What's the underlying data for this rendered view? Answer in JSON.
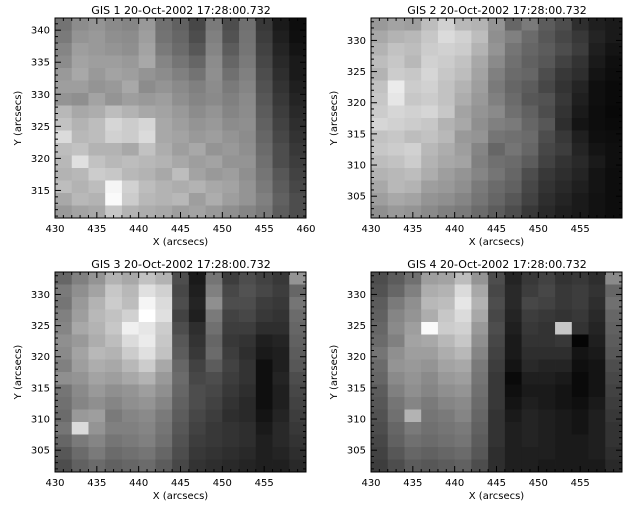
{
  "chart_data": [
    {
      "type": "heatmap",
      "title": "GIS 1 20-Oct-2002 17:28:00.732",
      "xlabel": "X (arcsecs)",
      "ylabel": "Y (arcsecs)",
      "xlim": [
        430,
        460
      ],
      "ylim": [
        310.7,
        341.9
      ],
      "xticks": [
        430,
        435,
        440,
        445,
        450,
        455,
        460
      ],
      "yticks": [
        315,
        320,
        325,
        330,
        335,
        340
      ],
      "colormap": "grayscale",
      "color_min": "#000000",
      "color_max": "#ffffff",
      "ncols": 15,
      "nrows": 16,
      "z": [
        [
          0.45,
          0.55,
          0.58,
          0.54,
          0.52,
          0.6,
          0.44,
          0.38,
          0.28,
          0.48,
          0.3,
          0.44,
          0.22,
          0.1,
          0.05
        ],
        [
          0.48,
          0.58,
          0.6,
          0.56,
          0.55,
          0.62,
          0.45,
          0.4,
          0.3,
          0.5,
          0.32,
          0.45,
          0.24,
          0.12,
          0.06
        ],
        [
          0.52,
          0.62,
          0.6,
          0.58,
          0.56,
          0.64,
          0.48,
          0.42,
          0.34,
          0.52,
          0.36,
          0.46,
          0.26,
          0.14,
          0.08
        ],
        [
          0.55,
          0.64,
          0.62,
          0.62,
          0.6,
          0.66,
          0.52,
          0.46,
          0.4,
          0.55,
          0.4,
          0.48,
          0.28,
          0.16,
          0.1
        ],
        [
          0.6,
          0.66,
          0.6,
          0.64,
          0.62,
          0.58,
          0.55,
          0.5,
          0.45,
          0.56,
          0.44,
          0.5,
          0.3,
          0.18,
          0.1
        ],
        [
          0.62,
          0.62,
          0.58,
          0.6,
          0.66,
          0.55,
          0.58,
          0.54,
          0.5,
          0.55,
          0.48,
          0.52,
          0.32,
          0.2,
          0.12
        ],
        [
          0.58,
          0.56,
          0.64,
          0.58,
          0.62,
          0.6,
          0.62,
          0.56,
          0.52,
          0.54,
          0.5,
          0.54,
          0.34,
          0.22,
          0.14
        ],
        [
          0.72,
          0.66,
          0.68,
          0.74,
          0.7,
          0.66,
          0.64,
          0.6,
          0.55,
          0.58,
          0.52,
          0.55,
          0.36,
          0.24,
          0.16
        ],
        [
          0.76,
          0.7,
          0.74,
          0.84,
          0.8,
          0.84,
          0.66,
          0.62,
          0.58,
          0.6,
          0.55,
          0.56,
          0.38,
          0.26,
          0.18
        ],
        [
          0.86,
          0.72,
          0.74,
          0.82,
          0.8,
          0.86,
          0.66,
          0.64,
          0.6,
          0.62,
          0.58,
          0.55,
          0.4,
          0.28,
          0.2
        ],
        [
          0.74,
          0.76,
          0.7,
          0.7,
          0.66,
          0.76,
          0.68,
          0.62,
          0.66,
          0.58,
          0.6,
          0.56,
          0.42,
          0.3,
          0.22
        ],
        [
          0.72,
          0.88,
          0.76,
          0.72,
          0.74,
          0.72,
          0.7,
          0.66,
          0.62,
          0.64,
          0.58,
          0.58,
          0.44,
          0.3,
          0.24
        ],
        [
          0.7,
          0.72,
          0.8,
          0.78,
          0.72,
          0.7,
          0.66,
          0.74,
          0.64,
          0.6,
          0.62,
          0.56,
          0.46,
          0.34,
          0.26
        ],
        [
          0.74,
          0.7,
          0.74,
          0.96,
          0.82,
          0.74,
          0.7,
          0.68,
          0.7,
          0.66,
          0.64,
          0.58,
          0.48,
          0.36,
          0.28
        ],
        [
          0.66,
          0.72,
          0.7,
          0.98,
          0.8,
          0.72,
          0.7,
          0.72,
          0.62,
          0.68,
          0.62,
          0.58,
          0.5,
          0.38,
          0.3
        ],
        [
          0.6,
          0.64,
          0.66,
          0.78,
          0.7,
          0.68,
          0.66,
          0.62,
          0.64,
          0.6,
          0.56,
          0.52,
          0.48,
          0.36,
          0.3
        ]
      ]
    },
    {
      "type": "heatmap",
      "title": "GIS 2 20-Oct-2002 17:28:00.732",
      "xlabel": "X (arcsecs)",
      "ylabel": "Y (arcsecs)",
      "xlim": [
        430,
        460
      ],
      "ylim": [
        301.5,
        333.6
      ],
      "xticks": [
        430,
        435,
        440,
        445,
        450,
        455
      ],
      "yticks": [
        305,
        310,
        315,
        320,
        325,
        330
      ],
      "colormap": "grayscale",
      "color_min": "#000000",
      "color_max": "#ffffff",
      "ncols": 15,
      "nrows": 16,
      "z": [
        [
          0.6,
          0.64,
          0.62,
          0.74,
          0.82,
          0.72,
          0.7,
          0.58,
          0.4,
          0.48,
          0.36,
          0.3,
          0.18,
          0.12,
          0.1
        ],
        [
          0.66,
          0.7,
          0.72,
          0.78,
          0.86,
          0.82,
          0.74,
          0.56,
          0.5,
          0.42,
          0.34,
          0.28,
          0.22,
          0.14,
          0.1
        ],
        [
          0.7,
          0.76,
          0.74,
          0.8,
          0.82,
          0.8,
          0.7,
          0.58,
          0.46,
          0.4,
          0.36,
          0.3,
          0.24,
          0.12,
          0.08
        ],
        [
          0.74,
          0.78,
          0.72,
          0.82,
          0.8,
          0.76,
          0.66,
          0.54,
          0.44,
          0.38,
          0.34,
          0.26,
          0.2,
          0.1,
          0.06
        ],
        [
          0.7,
          0.8,
          0.78,
          0.84,
          0.78,
          0.74,
          0.64,
          0.5,
          0.42,
          0.4,
          0.3,
          0.22,
          0.18,
          0.08,
          0.05
        ],
        [
          0.76,
          0.92,
          0.8,
          0.82,
          0.76,
          0.7,
          0.62,
          0.48,
          0.4,
          0.36,
          0.28,
          0.2,
          0.14,
          0.06,
          0.04
        ],
        [
          0.78,
          0.9,
          0.78,
          0.8,
          0.76,
          0.68,
          0.6,
          0.5,
          0.42,
          0.34,
          0.32,
          0.22,
          0.12,
          0.06,
          0.04
        ],
        [
          0.8,
          0.84,
          0.82,
          0.84,
          0.78,
          0.64,
          0.58,
          0.54,
          0.44,
          0.38,
          0.3,
          0.2,
          0.1,
          0.05,
          0.03
        ],
        [
          0.84,
          0.82,
          0.8,
          0.78,
          0.7,
          0.66,
          0.56,
          0.5,
          0.48,
          0.4,
          0.34,
          0.18,
          0.08,
          0.05,
          0.04
        ],
        [
          0.76,
          0.78,
          0.74,
          0.76,
          0.72,
          0.6,
          0.58,
          0.46,
          0.44,
          0.42,
          0.3,
          0.22,
          0.12,
          0.06,
          0.05
        ],
        [
          0.78,
          0.8,
          0.82,
          0.72,
          0.68,
          0.62,
          0.52,
          0.4,
          0.46,
          0.4,
          0.28,
          0.24,
          0.14,
          0.08,
          0.06
        ],
        [
          0.74,
          0.76,
          0.8,
          0.7,
          0.66,
          0.64,
          0.5,
          0.44,
          0.42,
          0.36,
          0.26,
          0.2,
          0.16,
          0.1,
          0.06
        ],
        [
          0.7,
          0.72,
          0.74,
          0.68,
          0.62,
          0.58,
          0.52,
          0.46,
          0.4,
          0.3,
          0.22,
          0.18,
          0.14,
          0.08,
          0.05
        ],
        [
          0.66,
          0.72,
          0.7,
          0.62,
          0.6,
          0.56,
          0.48,
          0.42,
          0.38,
          0.28,
          0.2,
          0.16,
          0.12,
          0.08,
          0.05
        ],
        [
          0.62,
          0.66,
          0.64,
          0.58,
          0.56,
          0.52,
          0.46,
          0.4,
          0.34,
          0.26,
          0.18,
          0.14,
          0.1,
          0.07,
          0.05
        ],
        [
          0.56,
          0.6,
          0.58,
          0.54,
          0.5,
          0.48,
          0.42,
          0.36,
          0.3,
          0.22,
          0.16,
          0.12,
          0.1,
          0.07,
          0.05
        ]
      ]
    },
    {
      "type": "heatmap",
      "title": "GIS 3 20-Oct-2002 17:28:00.732",
      "xlabel": "X (arcsecs)",
      "ylabel": "Y (arcsecs)",
      "xlim": [
        430,
        460
      ],
      "ylim": [
        301.5,
        333.6
      ],
      "xticks": [
        430,
        435,
        440,
        445,
        450,
        455
      ],
      "yticks": [
        305,
        310,
        315,
        320,
        325,
        330
      ],
      "colormap": "grayscale",
      "color_min": "#000000",
      "color_max": "#ffffff",
      "ncols": 15,
      "nrows": 16,
      "z": [
        [
          0.4,
          0.5,
          0.58,
          0.7,
          0.66,
          0.76,
          0.7,
          0.3,
          0.1,
          0.46,
          0.24,
          0.3,
          0.26,
          0.22,
          0.58
        ],
        [
          0.48,
          0.56,
          0.64,
          0.78,
          0.72,
          0.88,
          0.82,
          0.28,
          0.12,
          0.5,
          0.28,
          0.32,
          0.28,
          0.24,
          0.4
        ],
        [
          0.46,
          0.6,
          0.7,
          0.8,
          0.74,
          0.96,
          0.86,
          0.3,
          0.14,
          0.56,
          0.3,
          0.3,
          0.24,
          0.22,
          0.46
        ],
        [
          0.5,
          0.62,
          0.72,
          0.76,
          0.82,
          1.0,
          0.88,
          0.26,
          0.12,
          0.48,
          0.26,
          0.28,
          0.22,
          0.2,
          0.42
        ],
        [
          0.52,
          0.66,
          0.7,
          0.78,
          0.94,
          0.9,
          0.8,
          0.3,
          0.18,
          0.44,
          0.24,
          0.24,
          0.18,
          0.18,
          0.4
        ],
        [
          0.56,
          0.6,
          0.68,
          0.74,
          0.86,
          0.92,
          0.78,
          0.34,
          0.2,
          0.4,
          0.22,
          0.2,
          0.12,
          0.14,
          0.38
        ],
        [
          0.54,
          0.64,
          0.72,
          0.7,
          0.8,
          0.88,
          0.76,
          0.36,
          0.22,
          0.42,
          0.24,
          0.18,
          0.1,
          0.12,
          0.36
        ],
        [
          0.5,
          0.62,
          0.68,
          0.66,
          0.72,
          0.8,
          0.66,
          0.4,
          0.26,
          0.36,
          0.26,
          0.2,
          0.06,
          0.12,
          0.34
        ],
        [
          0.56,
          0.58,
          0.64,
          0.62,
          0.66,
          0.7,
          0.6,
          0.42,
          0.28,
          0.3,
          0.24,
          0.2,
          0.06,
          0.14,
          0.3
        ],
        [
          0.46,
          0.54,
          0.6,
          0.56,
          0.58,
          0.62,
          0.56,
          0.4,
          0.3,
          0.28,
          0.22,
          0.18,
          0.06,
          0.12,
          0.28
        ],
        [
          0.44,
          0.52,
          0.56,
          0.52,
          0.56,
          0.58,
          0.52,
          0.38,
          0.3,
          0.26,
          0.2,
          0.16,
          0.06,
          0.12,
          0.26
        ],
        [
          0.42,
          0.6,
          0.62,
          0.48,
          0.52,
          0.54,
          0.48,
          0.36,
          0.28,
          0.24,
          0.18,
          0.16,
          0.08,
          0.14,
          0.24
        ],
        [
          0.46,
          0.86,
          0.58,
          0.5,
          0.5,
          0.52,
          0.46,
          0.34,
          0.26,
          0.22,
          0.2,
          0.18,
          0.1,
          0.16,
          0.22
        ],
        [
          0.4,
          0.48,
          0.52,
          0.46,
          0.48,
          0.5,
          0.44,
          0.32,
          0.24,
          0.22,
          0.2,
          0.18,
          0.12,
          0.16,
          0.2
        ],
        [
          0.34,
          0.42,
          0.48,
          0.42,
          0.44,
          0.46,
          0.4,
          0.3,
          0.22,
          0.2,
          0.18,
          0.16,
          0.12,
          0.14,
          0.18
        ],
        [
          0.3,
          0.38,
          0.42,
          0.38,
          0.4,
          0.42,
          0.36,
          0.28,
          0.2,
          0.18,
          0.16,
          0.14,
          0.12,
          0.12,
          0.16
        ]
      ]
    },
    {
      "type": "heatmap",
      "title": "GIS 4 20-Oct-2002 17:28:00.732",
      "xlabel": "X (arcsecs)",
      "ylabel": "Y (arcsecs)",
      "xlim": [
        430,
        460
      ],
      "ylim": [
        301.5,
        333.6
      ],
      "xticks": [
        430,
        435,
        440,
        445,
        450,
        455
      ],
      "yticks": [
        305,
        310,
        315,
        320,
        325,
        330
      ],
      "colormap": "grayscale",
      "color_min": "#000000",
      "color_max": "#ffffff",
      "ncols": 15,
      "nrows": 16,
      "z": [
        [
          0.3,
          0.36,
          0.44,
          0.62,
          0.64,
          0.74,
          0.58,
          0.3,
          0.14,
          0.22,
          0.26,
          0.2,
          0.22,
          0.18,
          0.54
        ],
        [
          0.32,
          0.4,
          0.5,
          0.68,
          0.7,
          0.86,
          0.66,
          0.28,
          0.16,
          0.24,
          0.28,
          0.22,
          0.24,
          0.2,
          0.4
        ],
        [
          0.36,
          0.48,
          0.56,
          0.72,
          0.74,
          0.9,
          0.7,
          0.3,
          0.16,
          0.28,
          0.26,
          0.22,
          0.24,
          0.18,
          0.44
        ],
        [
          0.38,
          0.52,
          0.58,
          0.68,
          0.78,
          0.86,
          0.66,
          0.28,
          0.14,
          0.24,
          0.22,
          0.2,
          0.22,
          0.16,
          0.4
        ],
        [
          0.4,
          0.54,
          0.62,
          0.98,
          0.8,
          0.82,
          0.6,
          0.3,
          0.12,
          0.22,
          0.2,
          0.78,
          0.2,
          0.14,
          0.38
        ],
        [
          0.42,
          0.5,
          0.64,
          0.66,
          0.72,
          0.78,
          0.56,
          0.28,
          0.1,
          0.2,
          0.2,
          0.22,
          0.02,
          0.12,
          0.36
        ],
        [
          0.46,
          0.56,
          0.62,
          0.62,
          0.68,
          0.72,
          0.52,
          0.26,
          0.1,
          0.18,
          0.18,
          0.18,
          0.08,
          0.1,
          0.34
        ],
        [
          0.42,
          0.58,
          0.6,
          0.58,
          0.64,
          0.66,
          0.48,
          0.24,
          0.08,
          0.16,
          0.14,
          0.14,
          0.06,
          0.08,
          0.3
        ],
        [
          0.4,
          0.54,
          0.58,
          0.54,
          0.6,
          0.62,
          0.46,
          0.22,
          0.04,
          0.12,
          0.12,
          0.1,
          0.04,
          0.08,
          0.28
        ],
        [
          0.36,
          0.5,
          0.56,
          0.52,
          0.56,
          0.58,
          0.44,
          0.22,
          0.06,
          0.1,
          0.1,
          0.08,
          0.04,
          0.08,
          0.26
        ],
        [
          0.34,
          0.46,
          0.52,
          0.48,
          0.52,
          0.54,
          0.42,
          0.22,
          0.08,
          0.12,
          0.1,
          0.08,
          0.06,
          0.1,
          0.24
        ],
        [
          0.32,
          0.44,
          0.7,
          0.46,
          0.48,
          0.52,
          0.4,
          0.2,
          0.1,
          0.14,
          0.12,
          0.1,
          0.08,
          0.12,
          0.22
        ],
        [
          0.3,
          0.4,
          0.48,
          0.44,
          0.46,
          0.48,
          0.38,
          0.2,
          0.12,
          0.14,
          0.12,
          0.1,
          0.08,
          0.12,
          0.2
        ],
        [
          0.28,
          0.38,
          0.44,
          0.42,
          0.44,
          0.46,
          0.36,
          0.2,
          0.12,
          0.14,
          0.12,
          0.1,
          0.1,
          0.12,
          0.2
        ],
        [
          0.26,
          0.34,
          0.4,
          0.38,
          0.4,
          0.42,
          0.34,
          0.18,
          0.12,
          0.12,
          0.12,
          0.1,
          0.1,
          0.12,
          0.18
        ],
        [
          0.24,
          0.3,
          0.36,
          0.34,
          0.36,
          0.38,
          0.3,
          0.18,
          0.12,
          0.12,
          0.1,
          0.1,
          0.1,
          0.1,
          0.16
        ]
      ]
    }
  ]
}
